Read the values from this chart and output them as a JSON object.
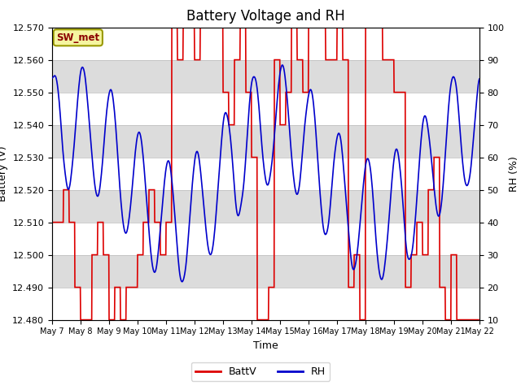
{
  "title": "Battery Voltage and RH",
  "xlabel": "Time",
  "ylabel_left": "Battery (V)",
  "ylabel_right": "RH (%)",
  "annotation": "SW_met",
  "ylim_left": [
    12.48,
    12.57
  ],
  "ylim_right": [
    10,
    100
  ],
  "yticks_left": [
    12.48,
    12.49,
    12.5,
    12.51,
    12.52,
    12.53,
    12.54,
    12.55,
    12.56,
    12.57
  ],
  "yticks_right": [
    10,
    20,
    30,
    40,
    50,
    60,
    70,
    80,
    90,
    100
  ],
  "xtick_labels": [
    "May 7",
    "May 8",
    "May 9",
    "May 10",
    "May 11",
    "May 12",
    "May 13",
    "May 14",
    "May 15",
    "May 16",
    "May 17",
    "May 18",
    "May 19",
    "May 20",
    "May 21",
    "May 22"
  ],
  "batt_color": "#dd0000",
  "rh_color": "#0000cc",
  "background_color": "#ffffff",
  "plot_bg_color": "#e8e8e8",
  "legend_batt": "BattV",
  "legend_rh": "RH",
  "title_fontsize": 12,
  "axis_fontsize": 9,
  "tick_fontsize": 8,
  "band_colors": [
    "#ffffff",
    "#dcdcdc"
  ],
  "figsize": [
    6.4,
    4.8
  ],
  "dpi": 100
}
